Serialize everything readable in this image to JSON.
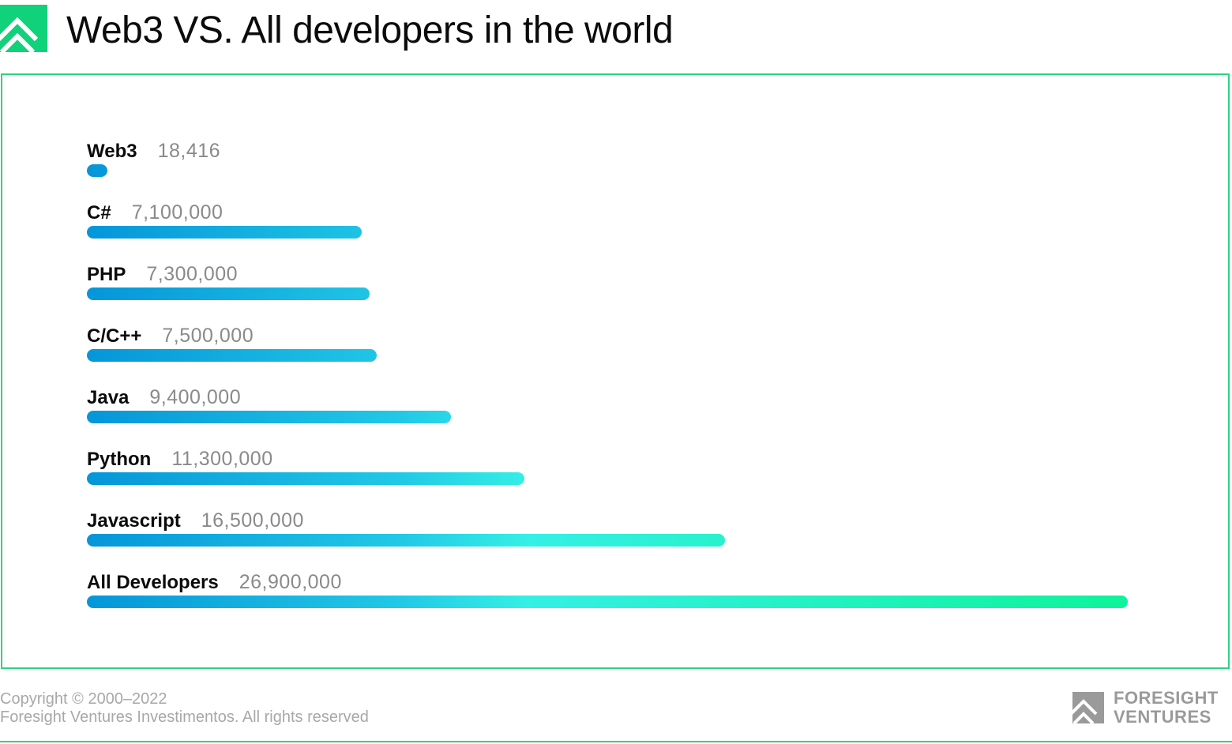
{
  "header": {
    "title": "Web3 VS. All developers in the world",
    "logo_icon": "mountain-logo-icon",
    "accent_color": "#10d27a"
  },
  "chart_data": {
    "type": "bar",
    "orientation": "horizontal",
    "title": "Web3 VS. All developers in the world",
    "categories": [
      "Web3",
      "C#",
      "PHP",
      "C/C++",
      "Java",
      "Python",
      "Javascript",
      "All Developers"
    ],
    "values": [
      18416,
      7100000,
      7300000,
      7500000,
      9400000,
      11300000,
      16500000,
      26900000
    ],
    "value_labels": [
      "18,416",
      "7,100,000",
      "7,300,000",
      "7,500,000",
      "9,400,000",
      "11,300,000",
      "16,500,000",
      "26,900,000"
    ],
    "xlabel": "",
    "ylabel": "",
    "grid": false,
    "legend": "none",
    "colors": {
      "gradient_start": "#0596d9",
      "gradient_mid": "#35f0e5",
      "gradient_end": "#0ff39c"
    }
  },
  "footer": {
    "copyright": "Copyright © 2000–2022",
    "rights": "Foresight Ventures Investimentos. All rights reserved",
    "brand_line1": "FORESIGHT",
    "brand_line2": "VENTURES",
    "brand_icon": "foresight-mountain-icon"
  }
}
